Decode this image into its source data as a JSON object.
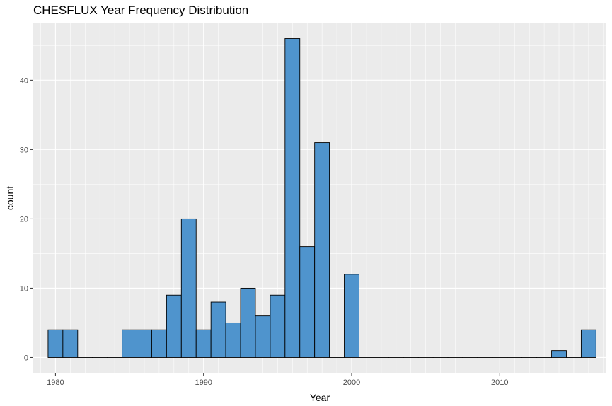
{
  "chart_data": {
    "type": "bar",
    "title": "CHESFLUX Year Frequency Distribution",
    "xlabel": "Year",
    "ylabel": "count",
    "xlim": [
      1978.5,
      2017.2
    ],
    "ylim": [
      -2.3,
      48.3
    ],
    "x_ticks": [
      1980,
      1990,
      2000,
      2010
    ],
    "y_ticks": [
      0,
      10,
      20,
      30,
      40
    ],
    "bin_width": 1,
    "grid": true,
    "bar_fill": "#4f94cd",
    "bar_stroke": "#000000",
    "panel_background": "#ebebeb",
    "bins": [
      {
        "x": 1980,
        "count": 4
      },
      {
        "x": 1981,
        "count": 4
      },
      {
        "x": 1982,
        "count": 0
      },
      {
        "x": 1983,
        "count": 0
      },
      {
        "x": 1984,
        "count": 0
      },
      {
        "x": 1985,
        "count": 4
      },
      {
        "x": 1986,
        "count": 4
      },
      {
        "x": 1987,
        "count": 4
      },
      {
        "x": 1988,
        "count": 9
      },
      {
        "x": 1989,
        "count": 20
      },
      {
        "x": 1990,
        "count": 4
      },
      {
        "x": 1991,
        "count": 8
      },
      {
        "x": 1992,
        "count": 5
      },
      {
        "x": 1993,
        "count": 10
      },
      {
        "x": 1994,
        "count": 6
      },
      {
        "x": 1995,
        "count": 9
      },
      {
        "x": 1996,
        "count": 46
      },
      {
        "x": 1997,
        "count": 16
      },
      {
        "x": 1998,
        "count": 31
      },
      {
        "x": 1999,
        "count": 0
      },
      {
        "x": 2000,
        "count": 12
      },
      {
        "x": 2001,
        "count": 0
      },
      {
        "x": 2002,
        "count": 0
      },
      {
        "x": 2003,
        "count": 0
      },
      {
        "x": 2004,
        "count": 0
      },
      {
        "x": 2005,
        "count": 0
      },
      {
        "x": 2006,
        "count": 0
      },
      {
        "x": 2007,
        "count": 0
      },
      {
        "x": 2008,
        "count": 0
      },
      {
        "x": 2009,
        "count": 0
      },
      {
        "x": 2010,
        "count": 0
      },
      {
        "x": 2011,
        "count": 0
      },
      {
        "x": 2012,
        "count": 0
      },
      {
        "x": 2013,
        "count": 0
      },
      {
        "x": 2014,
        "count": 1
      },
      {
        "x": 2015,
        "count": 0
      },
      {
        "x": 2016,
        "count": 4
      }
    ]
  }
}
